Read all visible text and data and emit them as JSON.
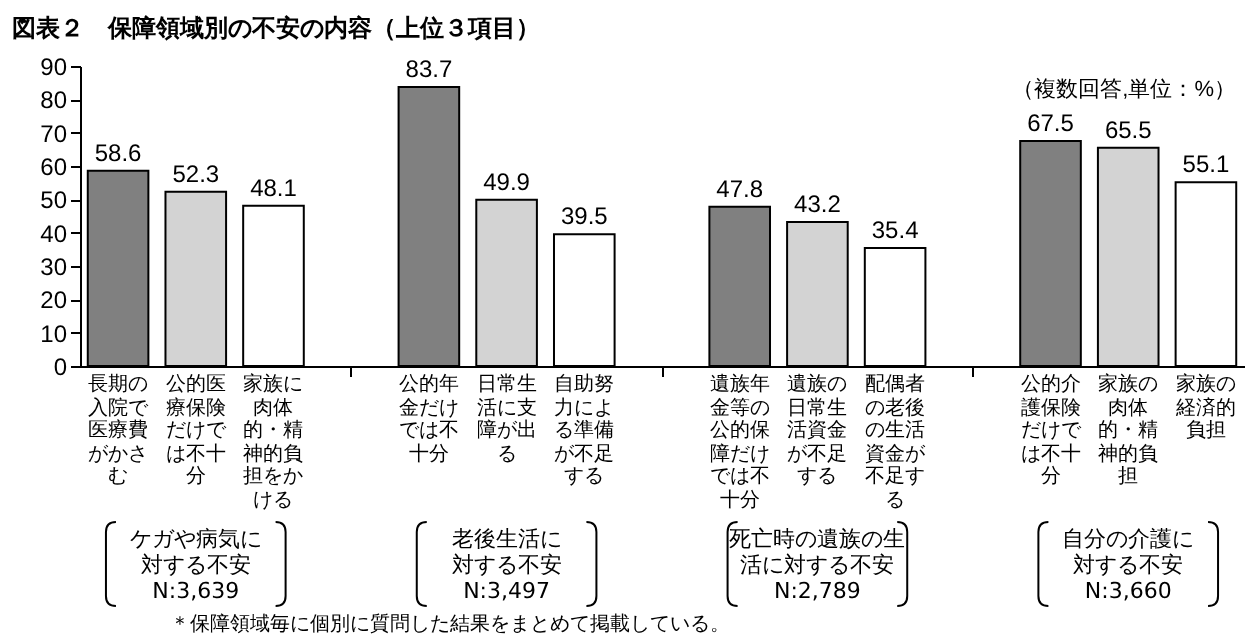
{
  "chart_data": {
    "type": "bar",
    "title": "図表２　保障領域別の不安の内容（上位３項目）",
    "categories": [
      "長期の入院で医療費がかさむ",
      "公的医療保険だけでは不十分",
      "家族に肉体的・精神的負担をかける",
      null,
      "公的年金だけでは不十分",
      "日常生活に支障が出る",
      "自助努力による準備が不足する",
      null,
      "遺族年金等の公的保障だけでは不十分",
      "遺族の日常生活資金が不足する",
      "配偶者の老後の生活資金が不足する",
      null,
      "公的介護保険だけでは不十分",
      "家族の肉体的・精神的負担",
      "家族の経済的負担"
    ],
    "values": [
      58.6,
      52.3,
      48.1,
      null,
      83.7,
      49.9,
      39.5,
      null,
      47.8,
      43.2,
      35.4,
      null,
      67.5,
      65.5,
      55.1
    ],
    "colors": [
      "#808080",
      "#d3d3d3",
      "#ffffff",
      null,
      "#808080",
      "#d3d3d3",
      "#ffffff",
      null,
      "#808080",
      "#d3d3d3",
      "#ffffff",
      null,
      "#808080",
      "#d3d3d3",
      "#ffffff"
    ],
    "ylim": [
      0,
      90
    ],
    "yticks": [
      0,
      10,
      20,
      30,
      40,
      50,
      60,
      70,
      80,
      90
    ],
    "data_labels": true,
    "annotations": [
      "（複数回答,単位：%）",
      "ケガや病気に対する不安",
      "N:3,639",
      "老後生活に対する不安",
      "N:3,497",
      "死亡時の遺族の生活に対する不安",
      "N:2,789",
      "自分の介護に対する不安",
      "N:3,660",
      "＊保障領域毎に個別に質問した結果をまとめて掲載している。"
    ]
  }
}
